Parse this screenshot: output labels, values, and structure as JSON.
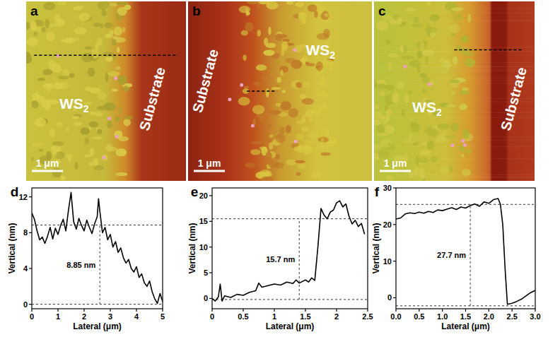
{
  "images": [
    {
      "letter": "a",
      "material": {
        "main": "WS",
        "sub": "2"
      },
      "substrate": "Substrate",
      "scale_bar": "1 μm"
    },
    {
      "letter": "b",
      "material": {
        "main": "WS",
        "sub": "2"
      },
      "substrate": "Substrate",
      "scale_bar": "1 μm"
    },
    {
      "letter": "c",
      "material": {
        "main": "WS",
        "sub": "2"
      },
      "substrate": "Substrate",
      "scale_bar": "1 μm"
    }
  ],
  "chart_data": [
    {
      "type": "line",
      "title": "d",
      "x_label": "Lateral (μm)",
      "y_label": "Vertical (nm)",
      "color": "#000000",
      "x": [
        0,
        0.1,
        0.2,
        0.3,
        0.4,
        0.5,
        0.6,
        0.7,
        0.8,
        0.9,
        1.0,
        1.1,
        1.2,
        1.3,
        1.4,
        1.5,
        1.6,
        1.7,
        1.8,
        1.9,
        2.0,
        2.1,
        2.2,
        2.3,
        2.4,
        2.5,
        2.55,
        2.6,
        2.7,
        2.8,
        2.9,
        3.0,
        3.1,
        3.2,
        3.3,
        3.4,
        3.5,
        3.6,
        3.7,
        3.8,
        3.9,
        4.0,
        4.1,
        4.2,
        4.3,
        4.4,
        4.5,
        4.6,
        4.7,
        4.8,
        4.9,
        5.0
      ],
      "values": [
        10.2,
        9.5,
        8.2,
        7.2,
        7.5,
        6.8,
        7.6,
        8.6,
        7.3,
        8.5,
        7.8,
        8.8,
        9.5,
        8.2,
        10.5,
        12.5,
        9.2,
        8.4,
        9.6,
        8.8,
        8.2,
        9.4,
        8.6,
        7.9,
        9.0,
        9.8,
        11.8,
        10.4,
        8.0,
        8.6,
        7.2,
        7.8,
        6.4,
        7.0,
        5.8,
        6.3,
        5.2,
        4.6,
        5.0,
        4.0,
        3.6,
        4.2,
        3.0,
        3.4,
        2.4,
        2.0,
        2.6,
        1.4,
        0.6,
        0.1,
        1.2,
        0.3
      ],
      "xlim": [
        0,
        5
      ],
      "ylim": [
        -0.5,
        13
      ],
      "xticks": [
        0,
        1,
        2,
        3,
        4,
        5
      ],
      "yticks": [
        0,
        4,
        8,
        12
      ],
      "step": {
        "x": 2.6,
        "low": 0,
        "high": 8.85,
        "label": "8.85 nm"
      }
    },
    {
      "type": "line",
      "title": "e",
      "x_label": "Lateral (μm)",
      "y_label": "Vertical (nm)",
      "color": "#000000",
      "x": [
        0,
        0.05,
        0.1,
        0.13,
        0.16,
        0.2,
        0.3,
        0.4,
        0.5,
        0.6,
        0.7,
        0.75,
        0.8,
        0.9,
        1.0,
        1.1,
        1.2,
        1.3,
        1.35,
        1.4,
        1.5,
        1.55,
        1.6,
        1.65,
        1.7,
        1.75,
        1.8,
        1.85,
        1.9,
        1.95,
        2.0,
        2.05,
        2.1,
        2.15,
        2.2,
        2.25,
        2.3,
        2.35,
        2.4,
        2.45
      ],
      "values": [
        0,
        -0.5,
        0.3,
        2.8,
        -0.5,
        0.5,
        0.2,
        0.8,
        0.6,
        1.2,
        1.5,
        3.0,
        2.2,
        2.5,
        2.8,
        2.6,
        3.2,
        2.9,
        3.6,
        3.0,
        3.6,
        3.2,
        4.0,
        3.5,
        10,
        17.5,
        16.2,
        15.5,
        16.8,
        17.2,
        18.6,
        19.0,
        17.8,
        18.4,
        16.0,
        14.5,
        15.2,
        14.0,
        14.6,
        12.5
      ],
      "xlim": [
        0,
        2.5
      ],
      "ylim": [
        -2,
        21.5
      ],
      "xticks": [
        0,
        0.5,
        1,
        1.5,
        2,
        2.5
      ],
      "yticks": [
        0,
        5,
        10,
        15,
        20
      ],
      "step": {
        "x": 1.4,
        "low": -0.2,
        "high": 15.5,
        "label": "15.7 nm"
      }
    },
    {
      "type": "line",
      "title": "f",
      "x_label": "Lateral (μm)",
      "y_label": "Vertical (nm)",
      "color": "#000000",
      "x": [
        0,
        0.1,
        0.2,
        0.3,
        0.4,
        0.5,
        0.6,
        0.7,
        0.8,
        0.9,
        1.0,
        1.1,
        1.2,
        1.3,
        1.4,
        1.5,
        1.6,
        1.7,
        1.8,
        1.9,
        2.0,
        2.1,
        2.2,
        2.25,
        2.3,
        2.35,
        2.4,
        2.5,
        2.6,
        2.7,
        2.8,
        2.9,
        3.0
      ],
      "values": [
        21.5,
        21.8,
        22.9,
        23.2,
        23.0,
        23.4,
        23.1,
        23.6,
        23.3,
        24.0,
        23.8,
        24.2,
        24.6,
        24.1,
        24.8,
        24.5,
        25.2,
        25.6,
        25.0,
        26.2,
        25.8,
        26.8,
        27.1,
        25.5,
        20.0,
        8.0,
        -1.8,
        -1.5,
        -1.0,
        -0.4,
        0.5,
        1.4,
        2.0
      ],
      "xlim": [
        0,
        3
      ],
      "ylim": [
        -3,
        30
      ],
      "xticks": [
        {
          "value": 0,
          "label": "0.0"
        },
        0.5,
        {
          "value": 1,
          "label": "1.0"
        },
        1.5,
        {
          "value": 2,
          "label": "2.0"
        },
        2.5,
        {
          "value": 3,
          "label": "3.0"
        }
      ],
      "yticks": [
        0,
        10,
        20,
        30
      ],
      "step": {
        "x": 1.6,
        "low": -2.2,
        "high": 25.5,
        "label": "27.7 nm"
      }
    }
  ]
}
